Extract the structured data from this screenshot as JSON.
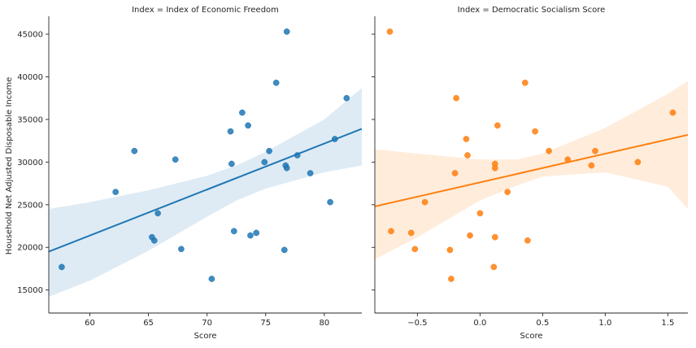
{
  "chart_data": [
    {
      "type": "scatter",
      "title": "Index = Index of Economic Freedom",
      "xlabel": "Score",
      "ylabel": "Household Net Adjusted Disposable Income",
      "xlim": [
        56.5,
        83.2
      ],
      "ylim": [
        12300,
        47100
      ],
      "xticks": [
        60,
        65,
        70,
        75,
        80
      ],
      "yticks": [
        15000,
        20000,
        25000,
        30000,
        35000,
        40000,
        45000
      ],
      "color": "#1f77b4",
      "regression": {
        "x": [
          56.5,
          83.2
        ],
        "y": [
          19500,
          33900
        ]
      },
      "ci_band": {
        "x": [
          56.5,
          60,
          65,
          70,
          72.5,
          75,
          80,
          83.2
        ],
        "upper": [
          24500,
          25300,
          26700,
          28400,
          29600,
          31200,
          35000,
          38700
        ],
        "lower": [
          14200,
          16100,
          19600,
          23600,
          25500,
          26900,
          28800,
          29600
        ]
      },
      "points": [
        {
          "x": 57.6,
          "y": 17700
        },
        {
          "x": 62.2,
          "y": 26500
        },
        {
          "x": 63.8,
          "y": 31300
        },
        {
          "x": 65.3,
          "y": 21200
        },
        {
          "x": 65.5,
          "y": 20800
        },
        {
          "x": 65.8,
          "y": 24000
        },
        {
          "x": 67.3,
          "y": 30300
        },
        {
          "x": 67.8,
          "y": 19800
        },
        {
          "x": 70.4,
          "y": 16300
        },
        {
          "x": 72.0,
          "y": 33600
        },
        {
          "x": 72.1,
          "y": 29800
        },
        {
          "x": 72.3,
          "y": 21900
        },
        {
          "x": 73.0,
          "y": 35800
        },
        {
          "x": 73.5,
          "y": 34300
        },
        {
          "x": 73.7,
          "y": 21400
        },
        {
          "x": 74.2,
          "y": 21700
        },
        {
          "x": 74.9,
          "y": 30000
        },
        {
          "x": 75.3,
          "y": 31300
        },
        {
          "x": 75.9,
          "y": 39300
        },
        {
          "x": 76.6,
          "y": 19700
        },
        {
          "x": 76.7,
          "y": 29600
        },
        {
          "x": 76.8,
          "y": 29300
        },
        {
          "x": 76.8,
          "y": 45300
        },
        {
          "x": 77.7,
          "y": 30800
        },
        {
          "x": 78.8,
          "y": 28700
        },
        {
          "x": 80.5,
          "y": 25300
        },
        {
          "x": 80.9,
          "y": 32700
        },
        {
          "x": 81.9,
          "y": 37500
        }
      ]
    },
    {
      "type": "scatter",
      "title": "Index = Democratic Socialism Score",
      "xlabel": "Score",
      "ylabel": "",
      "xlim": [
        -0.84,
        1.66
      ],
      "ylim": [
        12300,
        47100
      ],
      "xticks": [
        -0.5,
        0.0,
        0.5,
        1.0,
        1.5
      ],
      "xtick_labels": [
        "−0.5",
        "0.0",
        "0.5",
        "1.0",
        "1.5"
      ],
      "yticks": [
        15000,
        20000,
        25000,
        30000,
        35000,
        40000,
        45000
      ],
      "color": "#ff7f0e",
      "regression": {
        "x": [
          -0.84,
          1.66
        ],
        "y": [
          24800,
          33200
        ]
      },
      "ci_band": {
        "x": [
          -0.84,
          -0.5,
          0.0,
          0.3,
          0.5,
          1.0,
          1.5,
          1.66
        ],
        "upper": [
          31500,
          31000,
          30300,
          30300,
          31000,
          34000,
          38000,
          39500
        ],
        "lower": [
          18600,
          21200,
          25500,
          27300,
          28300,
          28800,
          27100,
          24500
        ]
      },
      "points": [
        {
          "x": -0.72,
          "y": 45300
        },
        {
          "x": -0.71,
          "y": 21900
        },
        {
          "x": -0.55,
          "y": 21700
        },
        {
          "x": -0.52,
          "y": 19800
        },
        {
          "x": -0.44,
          "y": 25300
        },
        {
          "x": -0.24,
          "y": 19700
        },
        {
          "x": -0.23,
          "y": 16300
        },
        {
          "x": -0.2,
          "y": 28700
        },
        {
          "x": -0.19,
          "y": 37500
        },
        {
          "x": -0.11,
          "y": 32700
        },
        {
          "x": -0.1,
          "y": 30800
        },
        {
          "x": -0.08,
          "y": 21400
        },
        {
          "x": 0.0,
          "y": 24000
        },
        {
          "x": 0.11,
          "y": 17700
        },
        {
          "x": 0.12,
          "y": 29300
        },
        {
          "x": 0.12,
          "y": 29800
        },
        {
          "x": 0.12,
          "y": 21200
        },
        {
          "x": 0.14,
          "y": 34300
        },
        {
          "x": 0.22,
          "y": 26500
        },
        {
          "x": 0.36,
          "y": 39300
        },
        {
          "x": 0.38,
          "y": 20800
        },
        {
          "x": 0.44,
          "y": 33600
        },
        {
          "x": 0.55,
          "y": 31300
        },
        {
          "x": 0.7,
          "y": 30300
        },
        {
          "x": 0.89,
          "y": 29600
        },
        {
          "x": 0.92,
          "y": 31300
        },
        {
          "x": 1.26,
          "y": 30000
        },
        {
          "x": 1.54,
          "y": 35800
        }
      ]
    }
  ]
}
